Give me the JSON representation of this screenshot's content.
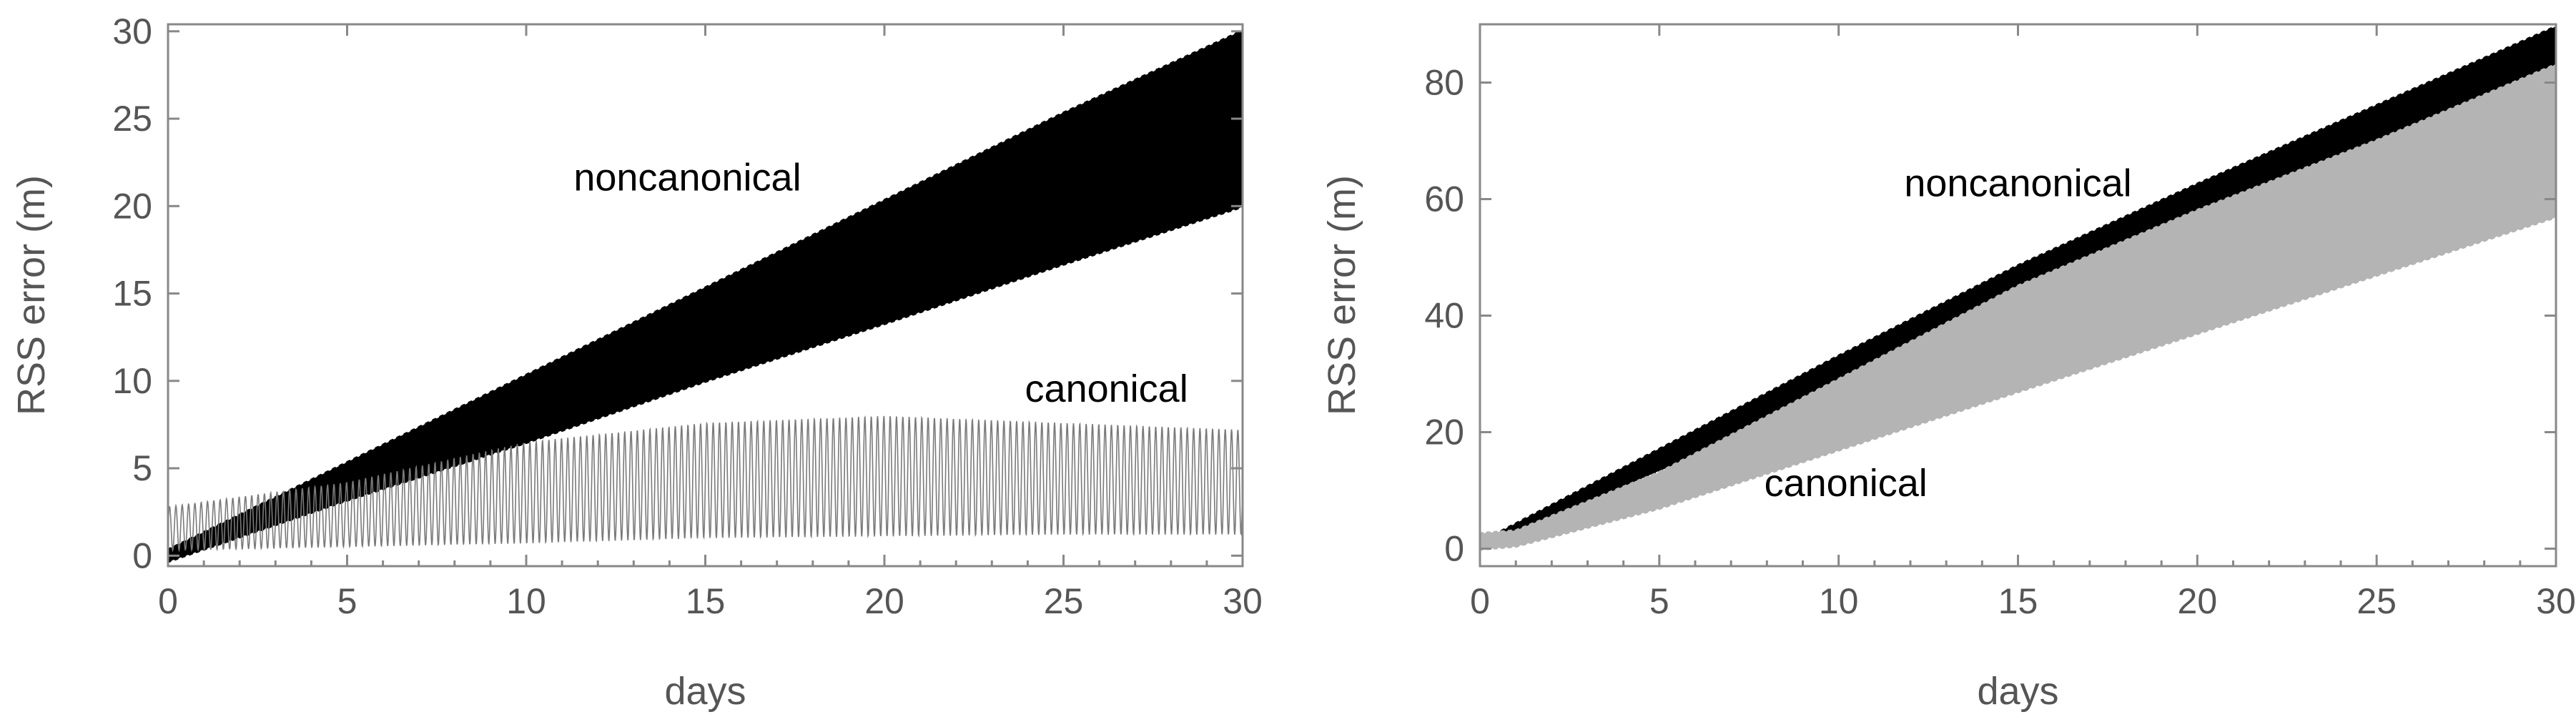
{
  "colors": {
    "noncanonical": "#000000",
    "canonical_left": "#7a7a7a",
    "canonical_right": "#b4b4b4",
    "axis": "#888888",
    "text": "#555555"
  },
  "chart_data": [
    {
      "type": "area",
      "xlabel": "days",
      "ylabel": "RSS error (m)",
      "xlim": [
        0,
        30
      ],
      "ylim": [
        -0.6,
        30.4
      ],
      "xticks": [
        0,
        5,
        10,
        15,
        20,
        25,
        30
      ],
      "yticks": [
        0,
        5,
        10,
        15,
        20,
        25,
        30
      ],
      "grid": false,
      "annotations": [
        {
          "text": "noncanonical",
          "x": 14.5,
          "y": 20.9
        },
        {
          "text": "canonical",
          "x": 26.2,
          "y": 8.8
        }
      ],
      "series": [
        {
          "label": "noncanonical",
          "x": [
            0,
            5,
            10,
            15,
            20,
            25,
            30
          ],
          "upper": [
            0.3,
            5.3,
            10.3,
            15.3,
            20.3,
            25.3,
            30.0
          ],
          "lower": [
            -0.3,
            3.2,
            6.5,
            10.0,
            13.3,
            16.7,
            20.0
          ]
        },
        {
          "label": "canonical",
          "x": [
            0,
            5,
            10,
            15,
            20,
            25,
            30
          ],
          "upper": [
            2.8,
            4.2,
            6.5,
            7.6,
            8.0,
            7.6,
            7.2
          ],
          "lower": [
            0.3,
            0.5,
            0.7,
            1.0,
            1.1,
            1.2,
            1.2
          ]
        }
      ]
    },
    {
      "type": "area",
      "xlabel": "days",
      "ylabel": "RSS error (m)",
      "xlim": [
        0,
        30
      ],
      "ylim": [
        -3,
        90
      ],
      "xticks": [
        0,
        5,
        10,
        15,
        20,
        25,
        30
      ],
      "yticks": [
        0,
        20,
        40,
        60,
        80
      ],
      "grid": false,
      "annotations": [
        {
          "text": "noncanonical",
          "x": 15.0,
          "y": 60.5
        },
        {
          "text": "canonical",
          "x": 10.2,
          "y": 9.0
        }
      ],
      "series": [
        {
          "label": "noncanonical",
          "x": [
            0,
            5,
            10,
            15,
            20,
            25,
            30
          ],
          "upper": [
            1.0,
            17.0,
            33.0,
            48.5,
            62.5,
            76.0,
            89.5
          ],
          "lower": [
            0.0,
            13.5,
            25.0,
            35.0,
            44.0,
            51.0,
            58.0
          ]
        },
        {
          "label": "canonical",
          "x": [
            0,
            1,
            5,
            10,
            15,
            20,
            25,
            30
          ],
          "upper": [
            2.5,
            3.0,
            13.0,
            29.0,
            45.0,
            58.0,
            70.0,
            83.0
          ],
          "lower": [
            0.0,
            0.5,
            7.0,
            17.0,
            27.0,
            37.0,
            47.0,
            57.0
          ]
        }
      ]
    }
  ]
}
